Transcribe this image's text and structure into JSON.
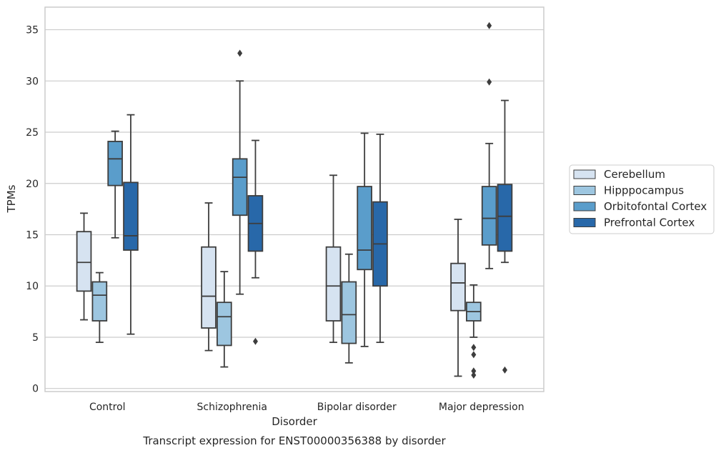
{
  "chart_data": {
    "type": "box",
    "title": "",
    "caption": "Transcript expression for ENST00000356388 by disorder",
    "xlabel": "Disorder",
    "ylabel": "TPMs",
    "ylim": [
      -0.3,
      37.2
    ],
    "yticks": [
      0,
      5,
      10,
      15,
      20,
      25,
      30,
      35
    ],
    "grid": "horizontal",
    "legend_position": "right",
    "categories": [
      "Control",
      "Schizophrenia",
      "Bipolar disorder",
      "Major depression"
    ],
    "series": [
      {
        "name": "Cerebellum",
        "color": "#d6e3f1",
        "boxes": [
          {
            "whislo": 6.7,
            "q1": 9.5,
            "med": 12.3,
            "q3": 15.3,
            "whishi": 17.1,
            "fliers": []
          },
          {
            "whislo": 3.7,
            "q1": 5.9,
            "med": 9.0,
            "q3": 13.8,
            "whishi": 18.1,
            "fliers": []
          },
          {
            "whislo": 4.5,
            "q1": 6.6,
            "med": 10.0,
            "q3": 13.8,
            "whishi": 20.8,
            "fliers": []
          },
          {
            "whislo": 1.2,
            "q1": 7.6,
            "med": 10.3,
            "q3": 12.2,
            "whishi": 16.5,
            "fliers": []
          }
        ]
      },
      {
        "name": "Hipppocampus",
        "color": "#9dc6e0",
        "boxes": [
          {
            "whislo": 4.5,
            "q1": 6.6,
            "med": 9.1,
            "q3": 10.4,
            "whishi": 11.3,
            "fliers": []
          },
          {
            "whislo": 2.1,
            "q1": 4.2,
            "med": 7.0,
            "q3": 8.4,
            "whishi": 11.4,
            "fliers": []
          },
          {
            "whislo": 2.5,
            "q1": 4.4,
            "med": 7.2,
            "q3": 10.4,
            "whishi": 13.1,
            "fliers": []
          },
          {
            "whislo": 5.0,
            "q1": 6.6,
            "med": 7.5,
            "q3": 8.4,
            "whishi": 10.1,
            "fliers": [
              4.0,
              3.3,
              1.7,
              1.3
            ]
          }
        ]
      },
      {
        "name": "Orbitofontal Cortex",
        "color": "#5a9dcb",
        "boxes": [
          {
            "whislo": 14.7,
            "q1": 19.8,
            "med": 22.4,
            "q3": 24.1,
            "whishi": 25.1,
            "fliers": []
          },
          {
            "whislo": 9.2,
            "q1": 16.9,
            "med": 20.6,
            "q3": 22.4,
            "whishi": 30.0,
            "fliers": [
              32.7
            ]
          },
          {
            "whislo": 4.1,
            "q1": 11.6,
            "med": 13.5,
            "q3": 19.7,
            "whishi": 24.9,
            "fliers": []
          },
          {
            "whislo": 11.7,
            "q1": 14.0,
            "med": 16.6,
            "q3": 19.7,
            "whishi": 23.9,
            "fliers": [
              35.4,
              29.9
            ]
          }
        ]
      },
      {
        "name": "Prefrontal Cortex",
        "color": "#2868a9",
        "boxes": [
          {
            "whislo": 5.3,
            "q1": 13.5,
            "med": 14.9,
            "q3": 20.1,
            "whishi": 26.7,
            "fliers": []
          },
          {
            "whislo": 10.8,
            "q1": 13.4,
            "med": 16.1,
            "q3": 18.8,
            "whishi": 24.2,
            "fliers": [
              4.6
            ]
          },
          {
            "whislo": 4.5,
            "q1": 10.0,
            "med": 14.1,
            "q3": 18.2,
            "whishi": 24.8,
            "fliers": []
          },
          {
            "whislo": 12.3,
            "q1": 13.4,
            "med": 16.8,
            "q3": 19.9,
            "whishi": 28.1,
            "fliers": [
              1.8
            ]
          }
        ]
      }
    ]
  }
}
